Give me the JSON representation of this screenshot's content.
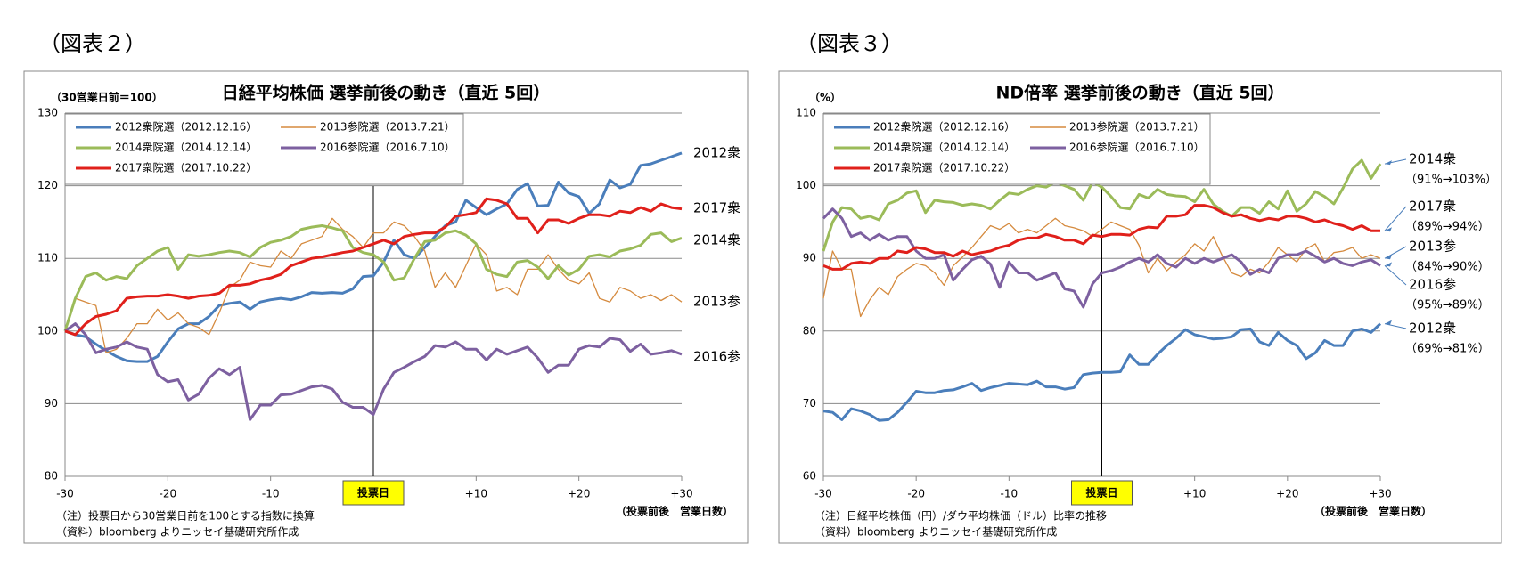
{
  "chart_data": [
    {
      "type": "line",
      "figure_label": "（図表２）",
      "title": "日経平均株価  選挙前後の動き（直近 5回）",
      "y_label": "（30営業日前＝100）",
      "x_label": "（投票前後　営業日数）",
      "notes": [
        "（注）投票日から30営業日前を100とする指数に換算",
        "（資料）bloomberg よりニッセイ基礎研究所作成"
      ],
      "x": [
        -30,
        -29,
        -28,
        -27,
        -26,
        -25,
        -24,
        -23,
        -22,
        -21,
        -20,
        -19,
        -18,
        -17,
        -16,
        -15,
        -14,
        -13,
        -12,
        -11,
        -10,
        -9,
        -8,
        -7,
        -6,
        -5,
        -4,
        -3,
        -2,
        -1,
        0,
        1,
        2,
        3,
        4,
        5,
        6,
        7,
        8,
        9,
        10,
        11,
        12,
        13,
        14,
        15,
        16,
        17,
        18,
        19,
        20,
        21,
        22,
        23,
        24,
        25,
        26,
        27,
        28,
        29,
        30
      ],
      "xlim": [
        -30,
        30
      ],
      "xticks": [
        -30,
        -20,
        -10,
        {
          "value": 10,
          "label": "+10"
        },
        {
          "value": 20,
          "label": "+20"
        },
        {
          "value": 30,
          "label": "+30"
        }
      ],
      "ylim": [
        80,
        130
      ],
      "yticks": [
        80,
        90,
        100,
        110,
        120,
        130
      ],
      "grid": true,
      "vline": {
        "x": 0,
        "label": "投票日"
      },
      "series": [
        {
          "name": "2012衆院選（2012.12.16）",
          "color": "#4a7ebb",
          "values": [
            100,
            99.5,
            99.2,
            98.2,
            97.3,
            96.5,
            95.9,
            95.8,
            95.8,
            96.5,
            98.5,
            100.3,
            101,
            101,
            102,
            103.5,
            103.8,
            104,
            103,
            104,
            104.3,
            104.5,
            104.3,
            104.7,
            105.3,
            105.2,
            105.3,
            105.2,
            105.8,
            107.5,
            107.6,
            109.5,
            112.5,
            110.5,
            110,
            111.5,
            113,
            114.5,
            115,
            118,
            117,
            116,
            116.8,
            117.5,
            119.5,
            120.3,
            117.2,
            117.3,
            120.5,
            119,
            118.5,
            116.2,
            117.5,
            120.8,
            119.7,
            120.2,
            122.8,
            123,
            123.5,
            124,
            124.5
          ]
        },
        {
          "name": "2013参院選（2013.7.21）",
          "color": "#d58a3e",
          "values": [
            100,
            104.5,
            104,
            103.5,
            97,
            97.5,
            99,
            101,
            101,
            103,
            101.5,
            102.5,
            101,
            100.5,
            99.5,
            102.5,
            106,
            107,
            109.5,
            109,
            108.8,
            111,
            110,
            112,
            112.5,
            113,
            115.5,
            114,
            113,
            111.5,
            113.5,
            113.5,
            115,
            114.5,
            113,
            111,
            106,
            108,
            106,
            109,
            112,
            110.5,
            105.5,
            106,
            105,
            108.5,
            108.5,
            110.5,
            108.5,
            107,
            106.5,
            108,
            104.5,
            104,
            106,
            105.5,
            104.5,
            105,
            104.2,
            105,
            104
          ]
        },
        {
          "name": "2014衆院選（2014.12.14）",
          "color": "#9bbb59",
          "values": [
            100,
            104.5,
            107.5,
            108,
            107,
            107.5,
            107.2,
            109,
            110,
            111,
            111.5,
            108.5,
            110.5,
            110.3,
            110.5,
            110.8,
            111,
            110.8,
            110.2,
            111.5,
            112.2,
            112.5,
            113,
            114,
            114.3,
            114.5,
            114.2,
            113.8,
            111.5,
            110.8,
            110.5,
            109.5,
            107,
            107.3,
            110,
            112.3,
            112.5,
            113.5,
            113.8,
            113.2,
            112,
            108.5,
            107.8,
            107.5,
            109.5,
            109.7,
            108.8,
            107.2,
            109,
            107.7,
            108.5,
            110.3,
            110.5,
            110.2,
            111,
            111.3,
            111.8,
            113.3,
            113.5,
            112.3,
            112.8
          ]
        },
        {
          "name": "2016参院選（2016.7.10）",
          "color": "#7d60a0",
          "values": [
            100,
            101,
            99.5,
            97,
            97.5,
            97.8,
            98.5,
            97.8,
            97.5,
            94,
            93,
            93.3,
            90.5,
            91.3,
            93.5,
            94.8,
            94,
            95,
            87.8,
            89.8,
            89.8,
            91.2,
            91.3,
            91.8,
            92.3,
            92.5,
            92,
            90.2,
            89.5,
            89.5,
            88.5,
            92,
            94.3,
            95,
            95.8,
            96.5,
            98,
            97.8,
            98.5,
            97.5,
            97.5,
            96,
            97.5,
            96.8,
            97.3,
            97.8,
            96.3,
            94.3,
            95.3,
            95.3,
            97.5,
            98,
            97.8,
            99,
            98.8,
            97.2,
            98.2,
            96.8,
            97,
            97.3,
            96.8
          ]
        },
        {
          "name": "2017衆院選（2017.10.22）",
          "color": "#e0201b",
          "values": [
            100,
            99.5,
            101,
            102,
            102.3,
            102.8,
            104.5,
            104.7,
            104.8,
            104.8,
            105,
            104.8,
            104.5,
            104.8,
            104.9,
            105.2,
            106.3,
            106.3,
            106.5,
            107,
            107.3,
            107.8,
            109,
            109.5,
            110,
            110.2,
            110.5,
            110.8,
            111,
            111.5,
            112,
            112.5,
            112,
            113,
            113.3,
            113.5,
            113.5,
            114.3,
            115.8,
            116,
            116.3,
            118.2,
            118,
            117.5,
            115.5,
            115.5,
            113.5,
            115.3,
            115.3,
            114.8,
            115.5,
            116,
            116,
            115.8,
            116.5,
            116.3,
            117,
            116.5,
            117.5,
            117,
            116.8
          ]
        }
      ],
      "annotations": [
        {
          "text": "2012衆",
          "color": "#1f3864"
        },
        {
          "text": "2017衆",
          "color": "#1f3864"
        },
        {
          "text": "2014衆",
          "color": "#1f3864"
        },
        {
          "text": "2013参",
          "color": "#e0201b"
        },
        {
          "text": "2016参",
          "color": "#e0201b"
        }
      ]
    },
    {
      "type": "line",
      "figure_label": "（図表３）",
      "title": "ND倍率  選挙前後の動き（直近 5回）",
      "y_label": "（%）",
      "x_label": "（投票前後　営業日数）",
      "notes": [
        "（注）日経平均株価（円）/ダウ平均株価（ドル）比率の推移",
        "（資料）bloomberg よりニッセイ基礎研究所作成"
      ],
      "x": [
        -30,
        -29,
        -28,
        -27,
        -26,
        -25,
        -24,
        -23,
        -22,
        -21,
        -20,
        -19,
        -18,
        -17,
        -16,
        -15,
        -14,
        -13,
        -12,
        -11,
        -10,
        -9,
        -8,
        -7,
        -6,
        -5,
        -4,
        -3,
        -2,
        -1,
        0,
        1,
        2,
        3,
        4,
        5,
        6,
        7,
        8,
        9,
        10,
        11,
        12,
        13,
        14,
        15,
        16,
        17,
        18,
        19,
        20,
        21,
        22,
        23,
        24,
        25,
        26,
        27,
        28,
        29,
        30
      ],
      "xlim": [
        -30,
        30
      ],
      "xticks": [
        -30,
        -20,
        -10,
        {
          "value": 10,
          "label": "+10"
        },
        {
          "value": 20,
          "label": "+20"
        },
        {
          "value": 30,
          "label": "+30"
        }
      ],
      "ylim": [
        60,
        110
      ],
      "yticks": [
        60,
        70,
        80,
        90,
        100,
        110
      ],
      "grid": true,
      "vline": {
        "x": 0,
        "label": "投票日"
      },
      "series": [
        {
          "name": "2012衆院選（2012.12.16）",
          "color": "#4a7ebb",
          "values": [
            69,
            68.8,
            67.8,
            69.3,
            69,
            68.5,
            67.7,
            67.8,
            68.8,
            70.2,
            71.7,
            71.5,
            71.5,
            71.8,
            71.9,
            72.3,
            72.8,
            71.8,
            72.2,
            72.5,
            72.8,
            72.7,
            72.6,
            73.1,
            72.3,
            72.3,
            72,
            72.2,
            74,
            74.2,
            74.3,
            74.3,
            74.4,
            76.7,
            75.4,
            75.4,
            76.8,
            78,
            79,
            80.2,
            79.5,
            79.2,
            78.9,
            79,
            79.2,
            80.2,
            80.3,
            78.5,
            78,
            79.8,
            78.7,
            78,
            76.2,
            77,
            78.7,
            78,
            78,
            80,
            80.3,
            79.8,
            81
          ]
        },
        {
          "name": "2013参院選（2013.7.21）",
          "color": "#d58a3e",
          "values": [
            84.5,
            91,
            88.5,
            88.5,
            82,
            84.3,
            86,
            85,
            87.5,
            88.5,
            89.3,
            89,
            88,
            86.3,
            89,
            90.2,
            91.5,
            93,
            94.5,
            94,
            94.8,
            93.5,
            94,
            93.5,
            94.5,
            95.5,
            94.5,
            94.2,
            93.8,
            93,
            94,
            95,
            94.5,
            94,
            91.8,
            88,
            90,
            88.3,
            89.5,
            90.5,
            92,
            91,
            93,
            90.3,
            88,
            87.5,
            88.5,
            88,
            89.5,
            91.5,
            90.5,
            89.5,
            91.3,
            92,
            89.5,
            90.8,
            91,
            91.5,
            90,
            90.5,
            90
          ]
        },
        {
          "name": "2014衆院選（2014.12.14）",
          "color": "#9bbb59",
          "values": [
            91,
            95,
            97,
            96.8,
            95.5,
            95.8,
            95.3,
            97.5,
            98,
            99,
            99.3,
            96.3,
            98,
            97.8,
            97.7,
            97.3,
            97.5,
            97.3,
            96.8,
            98,
            99,
            98.8,
            99.5,
            100,
            99.8,
            100.5,
            100,
            99.5,
            98,
            100.5,
            99.8,
            98.5,
            97,
            96.8,
            98.8,
            98.3,
            99.5,
            98.8,
            98.6,
            98.5,
            97.8,
            99.5,
            97.5,
            96.5,
            95.8,
            97,
            97,
            96.2,
            97.8,
            96.8,
            99.3,
            96.5,
            97.5,
            99.2,
            98.5,
            97.5,
            99.7,
            102.3,
            103.5,
            101,
            103
          ]
        },
        {
          "name": "2016参院選（2016.7.10）",
          "color": "#7d60a0",
          "values": [
            95.5,
            96.8,
            95.5,
            93,
            93.5,
            92.5,
            93.3,
            92.5,
            93,
            93,
            91,
            90,
            90,
            90.5,
            87,
            88.5,
            89.8,
            90.3,
            89.2,
            86,
            89.5,
            88,
            88,
            87,
            87.5,
            88,
            85.8,
            85.5,
            83.3,
            86.5,
            88,
            88.3,
            88.8,
            89.5,
            90,
            89.5,
            90.5,
            89.3,
            88.8,
            90,
            89.3,
            90,
            89.5,
            90,
            90.5,
            89.5,
            87.8,
            88.5,
            88,
            90,
            90.5,
            90.5,
            91,
            90.3,
            89.5,
            90,
            89.3,
            89,
            89.5,
            89.8,
            89
          ]
        },
        {
          "name": "2017衆院選（2017.10.22）",
          "color": "#e0201b",
          "values": [
            89,
            88.5,
            88.5,
            89.3,
            89.5,
            89.3,
            90,
            90,
            91,
            90.8,
            91.5,
            91.3,
            90.8,
            90.8,
            90.3,
            91,
            90.5,
            90.8,
            91,
            91.5,
            91.8,
            92.5,
            92.8,
            92.8,
            93.3,
            93,
            92.5,
            92.5,
            92,
            93.2,
            93,
            93.3,
            93.3,
            93.2,
            94,
            94.3,
            94.2,
            95.8,
            95.8,
            96,
            97.3,
            97.3,
            97,
            96.3,
            95.8,
            96,
            95.5,
            95.2,
            95.5,
            95.3,
            95.8,
            95.8,
            95.5,
            95,
            95.3,
            94.8,
            94.5,
            94,
            94.5,
            93.8,
            93.8
          ]
        }
      ],
      "annotations": [
        {
          "text": "2014衆",
          "sub": "（91%→103%）",
          "color": "#1f3864"
        },
        {
          "text": "2017衆",
          "sub": "（89%→94%）",
          "color": "#1f3864"
        },
        {
          "text": "2013参",
          "sub": "（84%→90%）",
          "color": "#e0201b"
        },
        {
          "text": "2016参",
          "sub": "（95%→89%）",
          "color": "#e0201b"
        },
        {
          "text": "2012衆",
          "sub": "（69%→81%）",
          "color": "#1f3864"
        }
      ]
    }
  ]
}
